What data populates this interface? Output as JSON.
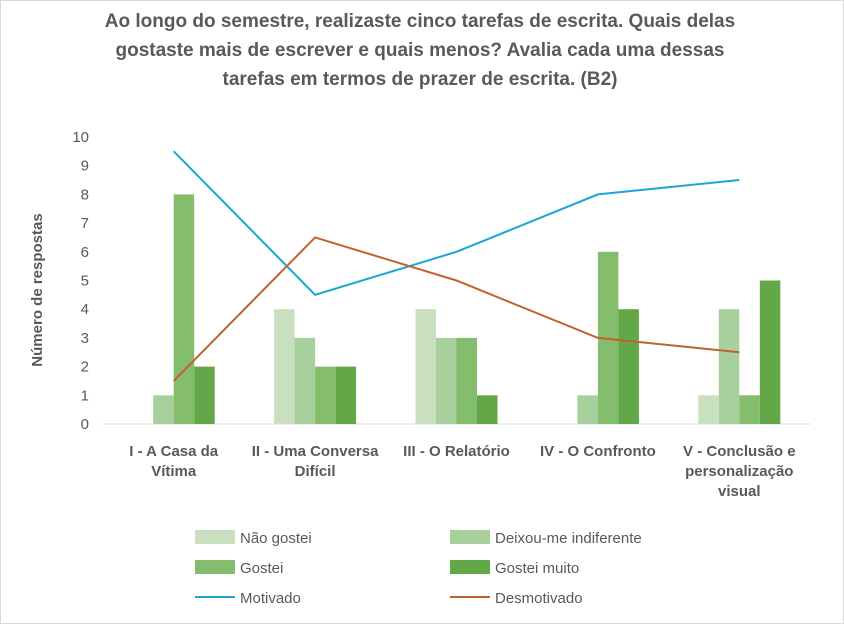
{
  "chart_data": {
    "type": "bar",
    "title": "Ao longo do semestre, realizaste cinco tarefas de escrita. Quais delas gostaste mais de escrever e quais menos? Avalia cada uma dessas tarefas em termos de prazer de escrita.  (B2)",
    "y_label": "Número de respostas",
    "categories": [
      "I - A Casa da Vítima",
      "II - Uma Conversa Difícil",
      "III - O Relatório",
      "IV - O Confronto",
      "V - Conclusão e personalização visual"
    ],
    "series": [
      {
        "name": "Não gostei",
        "color": "#c8dfc0",
        "values": [
          0,
          4,
          4,
          0,
          1
        ]
      },
      {
        "name": "Deixou-me indiferente",
        "color": "#a8d09c",
        "values": [
          1,
          3,
          3,
          1,
          4
        ]
      },
      {
        "name": "Gostei",
        "color": "#84bd6c",
        "values": [
          8,
          2,
          3,
          6,
          1
        ]
      },
      {
        "name": "Gostei muito",
        "color": "#62a848",
        "values": [
          2,
          2,
          1,
          4,
          5
        ]
      },
      {
        "name": "Motivado",
        "color": "#1ba6d3",
        "type": "line",
        "values": [
          9.5,
          4.5,
          6,
          8,
          8.5
        ]
      },
      {
        "name": "Desmotivado",
        "color": "#c0622a",
        "type": "line",
        "values": [
          1.5,
          6.5,
          5,
          3,
          2.5
        ]
      }
    ],
    "ylim": [
      0,
      10
    ],
    "yticks": [
      0,
      1,
      2,
      3,
      4,
      5,
      6,
      7,
      8,
      9,
      10
    ],
    "grid": false,
    "legend": "bottom"
  }
}
